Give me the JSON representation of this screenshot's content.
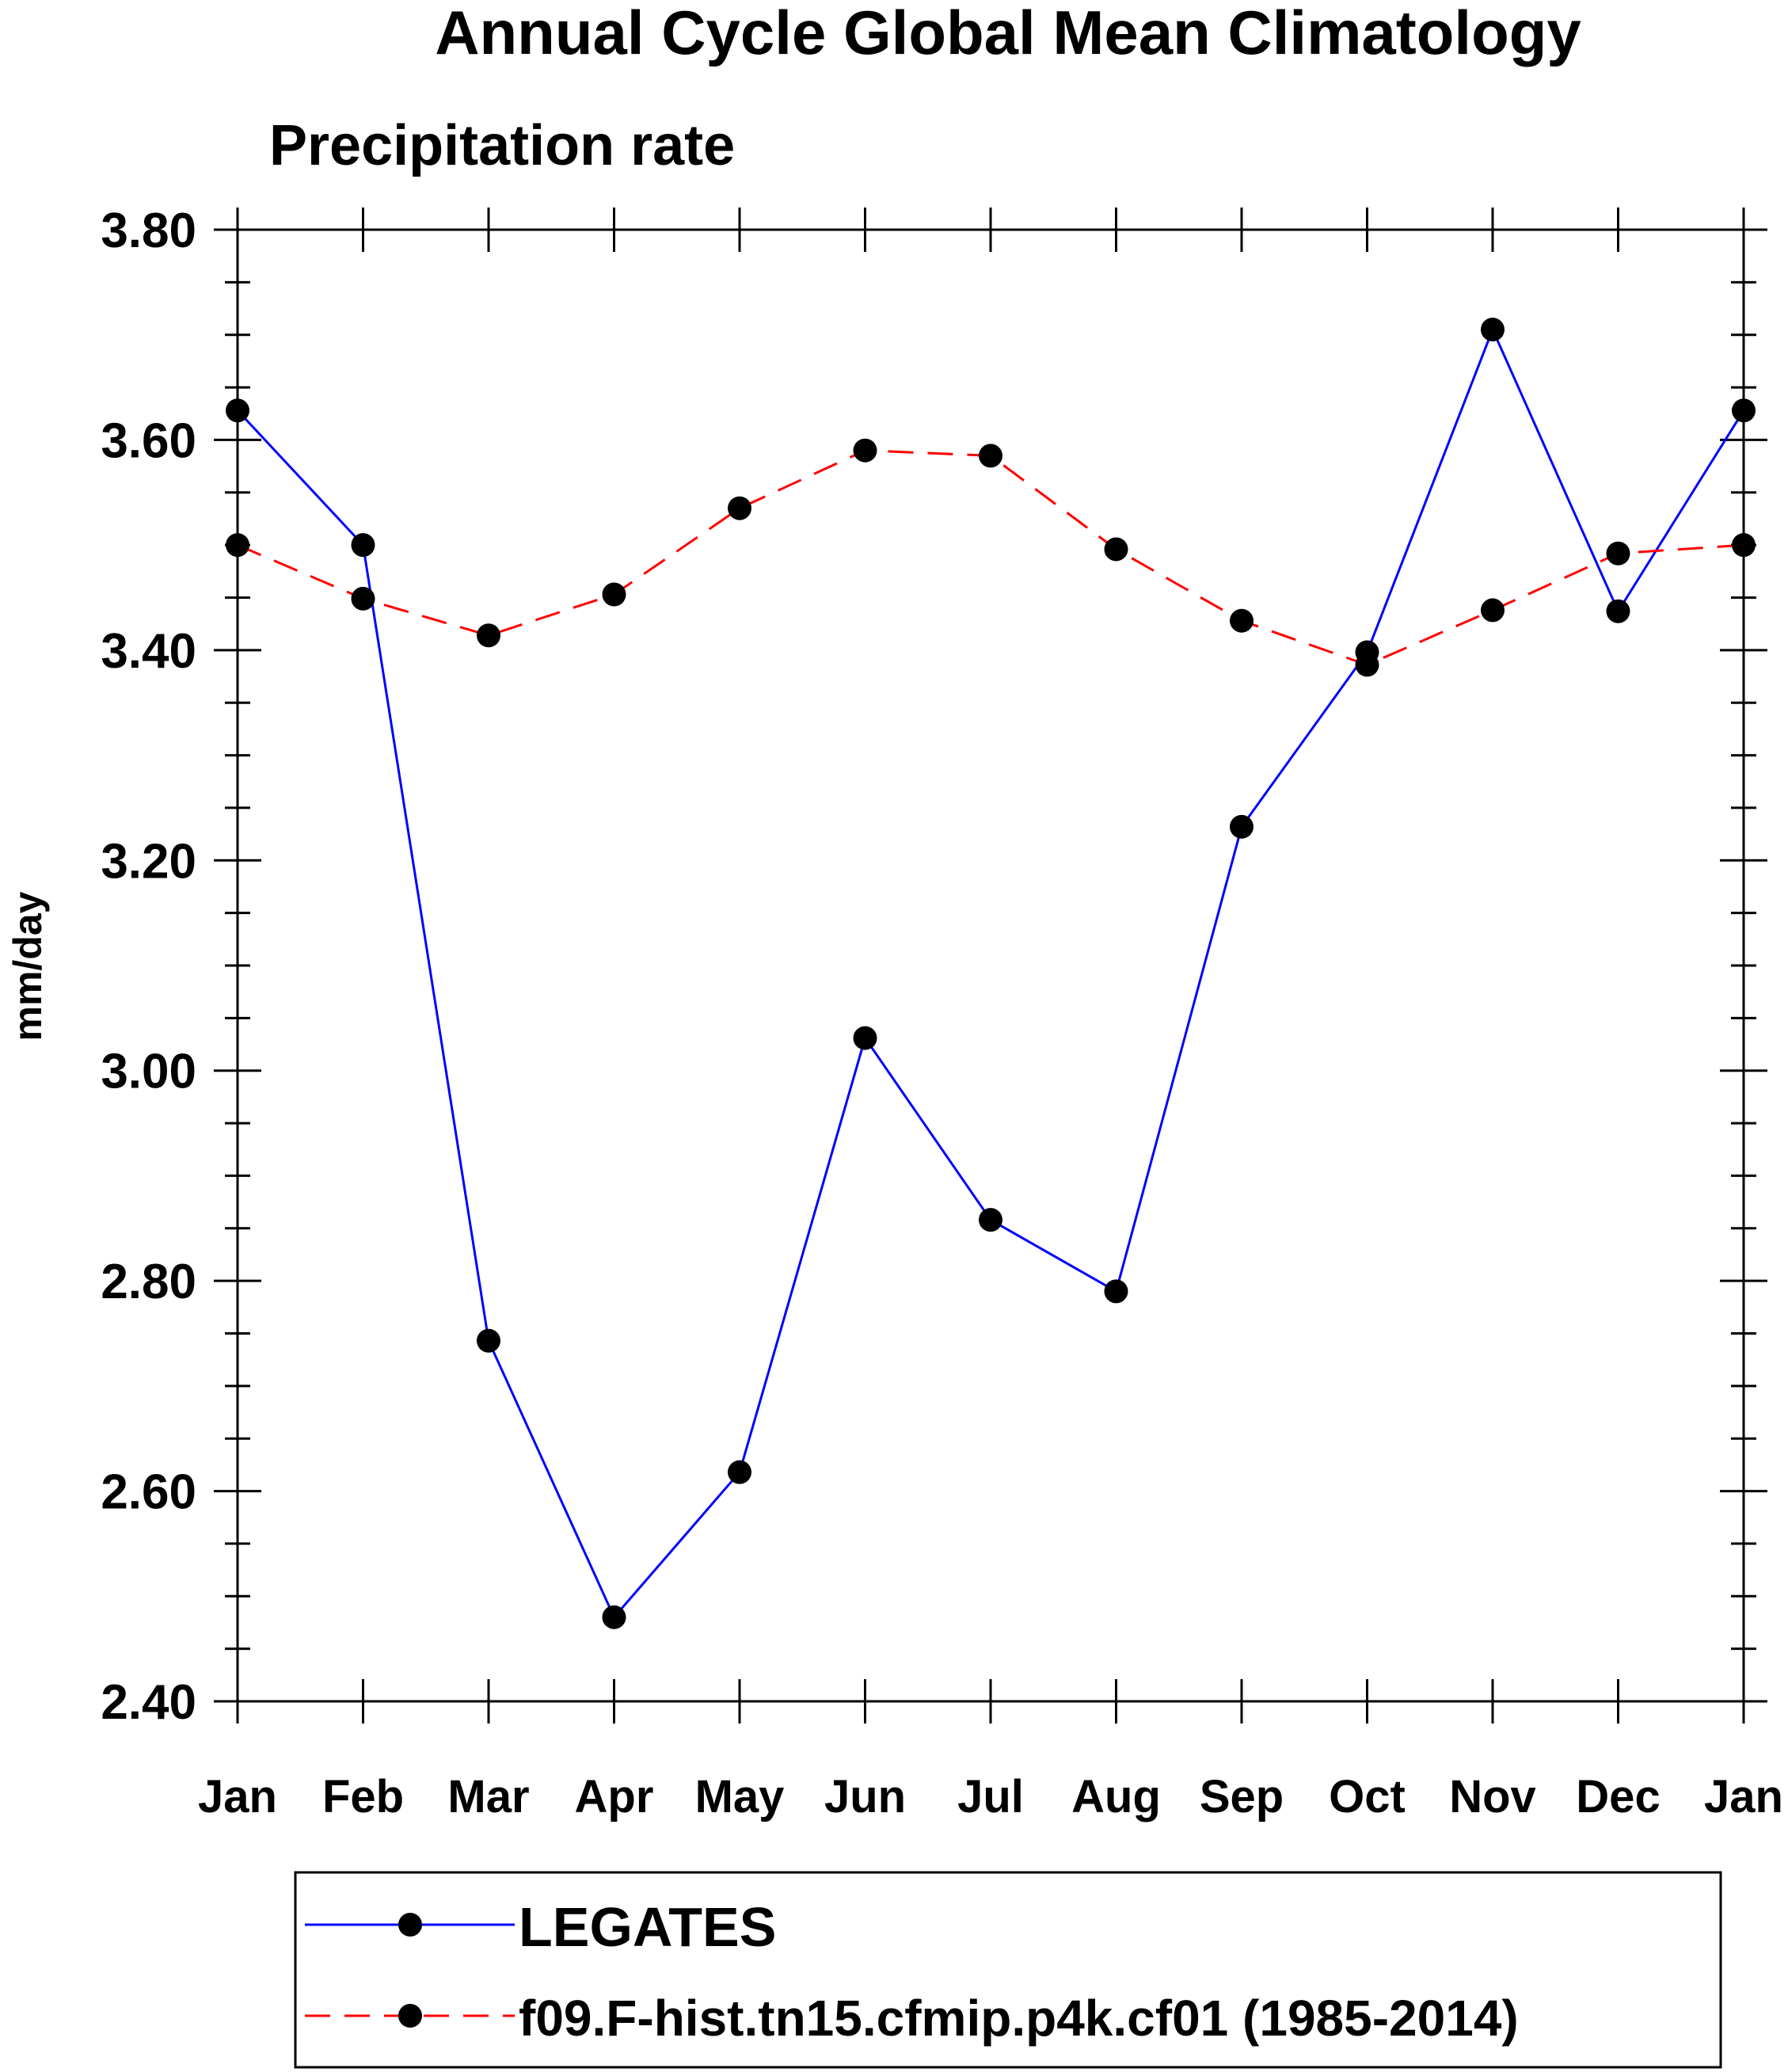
{
  "chart_data": {
    "type": "line",
    "title": "Annual Cycle Global Mean Climatology",
    "subtitle": "Precipitation rate",
    "xlabel": "",
    "ylabel": "mm/day",
    "categories": [
      "Jan",
      "Feb",
      "Mar",
      "Apr",
      "May",
      "Jun",
      "Jul",
      "Aug",
      "Sep",
      "Oct",
      "Nov",
      "Dec",
      "Jan"
    ],
    "ylim": [
      2.4,
      3.8
    ],
    "yticks": [
      "2.40",
      "2.60",
      "2.80",
      "3.00",
      "3.20",
      "3.40",
      "3.60",
      "3.80"
    ],
    "series": [
      {
        "name": "LEGATES",
        "color": "#0000ff",
        "dash": "solid",
        "values": [
          3.628,
          3.5,
          2.743,
          2.48,
          2.618,
          3.031,
          2.858,
          2.79,
          3.232,
          3.398,
          3.705,
          3.437,
          3.628
        ]
      },
      {
        "name": "f09.F-hist.tn15.cfmip.p4k.cf01 (1985-2014)",
        "color": "#ff0000",
        "dash": "dashed",
        "values": [
          3.5,
          3.449,
          3.414,
          3.453,
          3.535,
          3.59,
          3.585,
          3.496,
          3.428,
          3.386,
          3.438,
          3.492,
          3.5
        ]
      }
    ],
    "legend_position": "bottom"
  }
}
